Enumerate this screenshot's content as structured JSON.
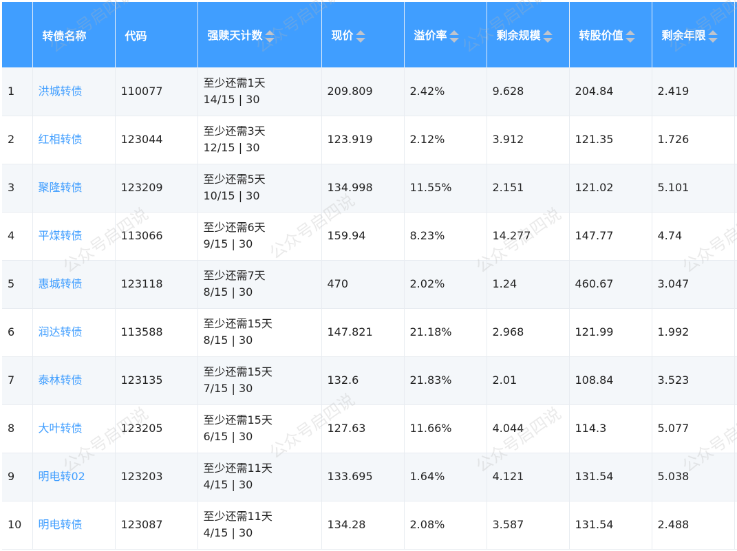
{
  "watermark": "公众号启四说",
  "header_color": "#409eff",
  "link_color": "#409eff",
  "columns": [
    {
      "label": "",
      "sortable": false
    },
    {
      "label": "转债名称",
      "sortable": false
    },
    {
      "label": "代码",
      "sortable": false
    },
    {
      "label": "强赎天计数",
      "sortable": true
    },
    {
      "label": "现价",
      "sortable": true
    },
    {
      "label": "溢价率",
      "sortable": true
    },
    {
      "label": "剩余规模",
      "sortable": true
    },
    {
      "label": "转股价值",
      "sortable": true
    },
    {
      "label": "剩余年限",
      "sortable": true
    }
  ],
  "rows": [
    {
      "idx": "1",
      "name": "洪城转债",
      "code": "110077",
      "days": "至少还需1天",
      "count": "14/15 | 30",
      "price": "209.809",
      "premium": "2.42%",
      "size": "9.628",
      "conv": "204.84",
      "years": "2.419"
    },
    {
      "idx": "2",
      "name": "红相转债",
      "code": "123044",
      "days": "至少还需3天",
      "count": "12/15 | 30",
      "price": "123.919",
      "premium": "2.12%",
      "size": "3.912",
      "conv": "121.35",
      "years": "1.726"
    },
    {
      "idx": "3",
      "name": "聚隆转债",
      "code": "123209",
      "days": "至少还需5天",
      "count": "10/15 | 30",
      "price": "134.998",
      "premium": "11.55%",
      "size": "2.151",
      "conv": "121.02",
      "years": "5.101"
    },
    {
      "idx": "4",
      "name": "平煤转债",
      "code": "113066",
      "days": "至少还需6天",
      "count": "9/15 | 30",
      "price": "159.94",
      "premium": "8.23%",
      "size": "14.277",
      "conv": "147.77",
      "years": "4.74"
    },
    {
      "idx": "5",
      "name": "惠城转债",
      "code": "123118",
      "days": "至少还需7天",
      "count": "8/15 | 30",
      "price": "470",
      "premium": "2.02%",
      "size": "1.24",
      "conv": "460.67",
      "years": "3.047"
    },
    {
      "idx": "6",
      "name": "润达转债",
      "code": "113588",
      "days": "至少还需15天",
      "count": "8/15 | 30",
      "price": "147.821",
      "premium": "21.18%",
      "size": "2.968",
      "conv": "121.99",
      "years": "1.992"
    },
    {
      "idx": "7",
      "name": "泰林转债",
      "code": "123135",
      "days": "至少还需15天",
      "count": "7/15 | 30",
      "price": "132.6",
      "premium": "21.83%",
      "size": "2.01",
      "conv": "108.84",
      "years": "3.523"
    },
    {
      "idx": "8",
      "name": "大叶转债",
      "code": "123205",
      "days": "至少还需15天",
      "count": "6/15 | 30",
      "price": "127.63",
      "premium": "11.66%",
      "size": "4.044",
      "conv": "114.3",
      "years": "5.077"
    },
    {
      "idx": "9",
      "name": "明电转02",
      "code": "123203",
      "days": "至少还需11天",
      "count": "4/15 | 30",
      "price": "133.695",
      "premium": "1.64%",
      "size": "4.121",
      "conv": "131.54",
      "years": "5.038"
    },
    {
      "idx": "10",
      "name": "明电转债",
      "code": "123087",
      "days": "至少还需11天",
      "count": "4/15 | 30",
      "price": "134.28",
      "premium": "2.08%",
      "size": "3.587",
      "conv": "131.54",
      "years": "2.488"
    }
  ]
}
